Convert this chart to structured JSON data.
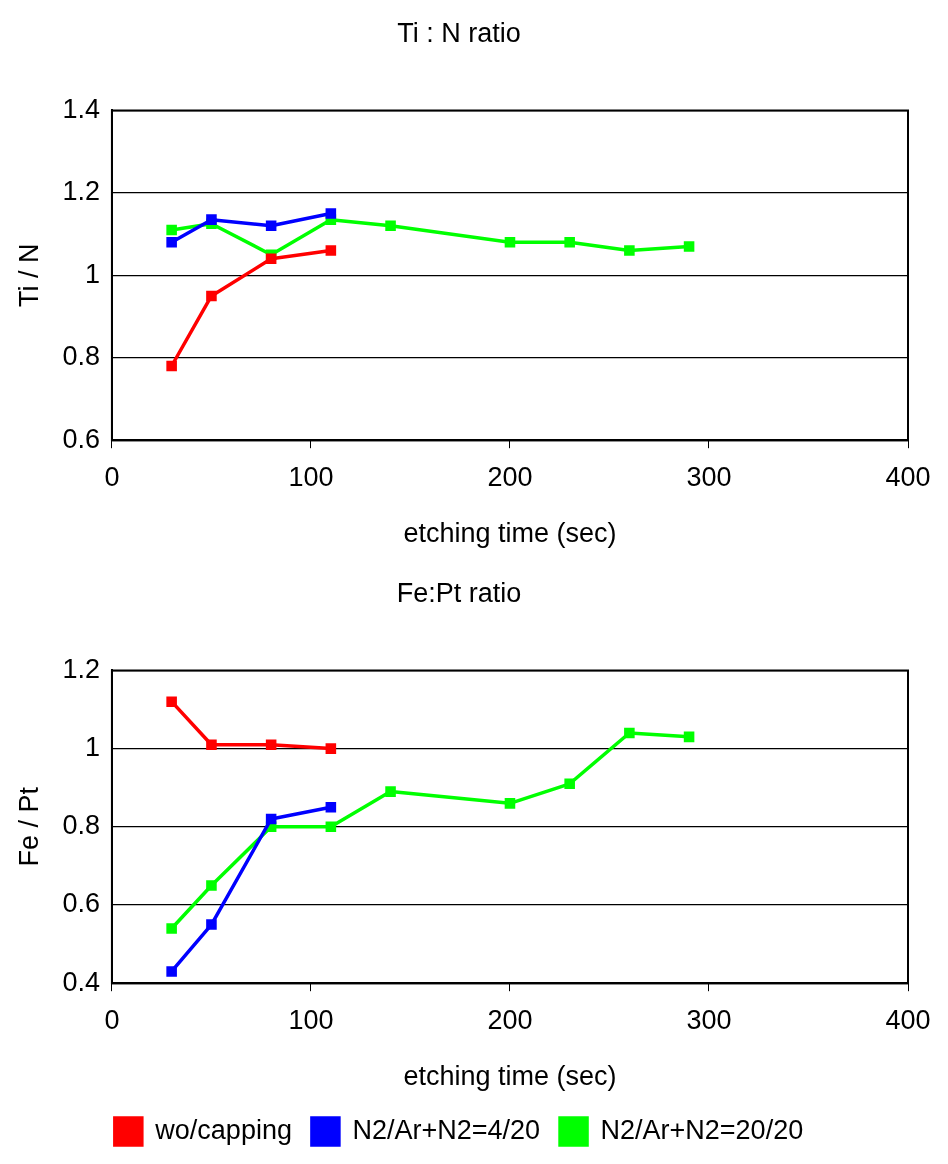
{
  "chart_data": [
    {
      "type": "line",
      "title": "Ti : N ratio",
      "xlabel": "etching time (sec)",
      "ylabel": "Ti / N",
      "xlim": [
        0,
        400
      ],
      "xticks": [
        0,
        100,
        200,
        300,
        400
      ],
      "ylim": [
        0.6,
        1.4
      ],
      "yticks": [
        0.6,
        0.8,
        1,
        1.2,
        1.4
      ],
      "grid": "y",
      "legend": false,
      "marker": "square",
      "line_style": "solid",
      "series": [
        {
          "color": "#ff0000",
          "x": [
            30,
            50,
            80,
            110
          ],
          "values": [
            0.78,
            0.95,
            1.04,
            1.06
          ]
        },
        {
          "color": "#0000ff",
          "x": [
            30,
            50,
            80,
            110
          ],
          "values": [
            1.08,
            1.135,
            1.12,
            1.15
          ]
        },
        {
          "color": "#00ff00",
          "x": [
            30,
            50,
            80,
            110,
            140,
            200,
            230,
            260,
            290
          ],
          "values": [
            1.11,
            1.125,
            1.05,
            1.135,
            1.12,
            1.08,
            1.08,
            1.06,
            1.07
          ]
        }
      ]
    },
    {
      "type": "line",
      "title": "Fe:Pt ratio",
      "xlabel": "etching time (sec)",
      "ylabel": "Fe / Pt",
      "xlim": [
        0,
        400
      ],
      "xticks": [
        0,
        100,
        200,
        300,
        400
      ],
      "ylim": [
        0.4,
        1.2
      ],
      "yticks": [
        0.4,
        0.6,
        0.8,
        1,
        1.2
      ],
      "grid": "y",
      "legend": "bottom",
      "marker": "square",
      "line_style": "solid",
      "series": [
        {
          "name": "wo/capping",
          "color": "#ff0000",
          "x": [
            30,
            50,
            80,
            110
          ],
          "values": [
            1.12,
            1.01,
            1.01,
            1.0
          ]
        },
        {
          "name": "N2/Ar+N2=4/20",
          "color": "#0000ff",
          "x": [
            30,
            50,
            80,
            110
          ],
          "values": [
            0.43,
            0.55,
            0.82,
            0.85
          ]
        },
        {
          "name": "N2/Ar+N2=20/20",
          "color": "#00ff00",
          "x": [
            30,
            50,
            80,
            110,
            140,
            200,
            230,
            260,
            290
          ],
          "values": [
            0.54,
            0.65,
            0.8,
            0.8,
            0.89,
            0.86,
            0.91,
            1.04,
            1.03
          ]
        }
      ]
    }
  ]
}
